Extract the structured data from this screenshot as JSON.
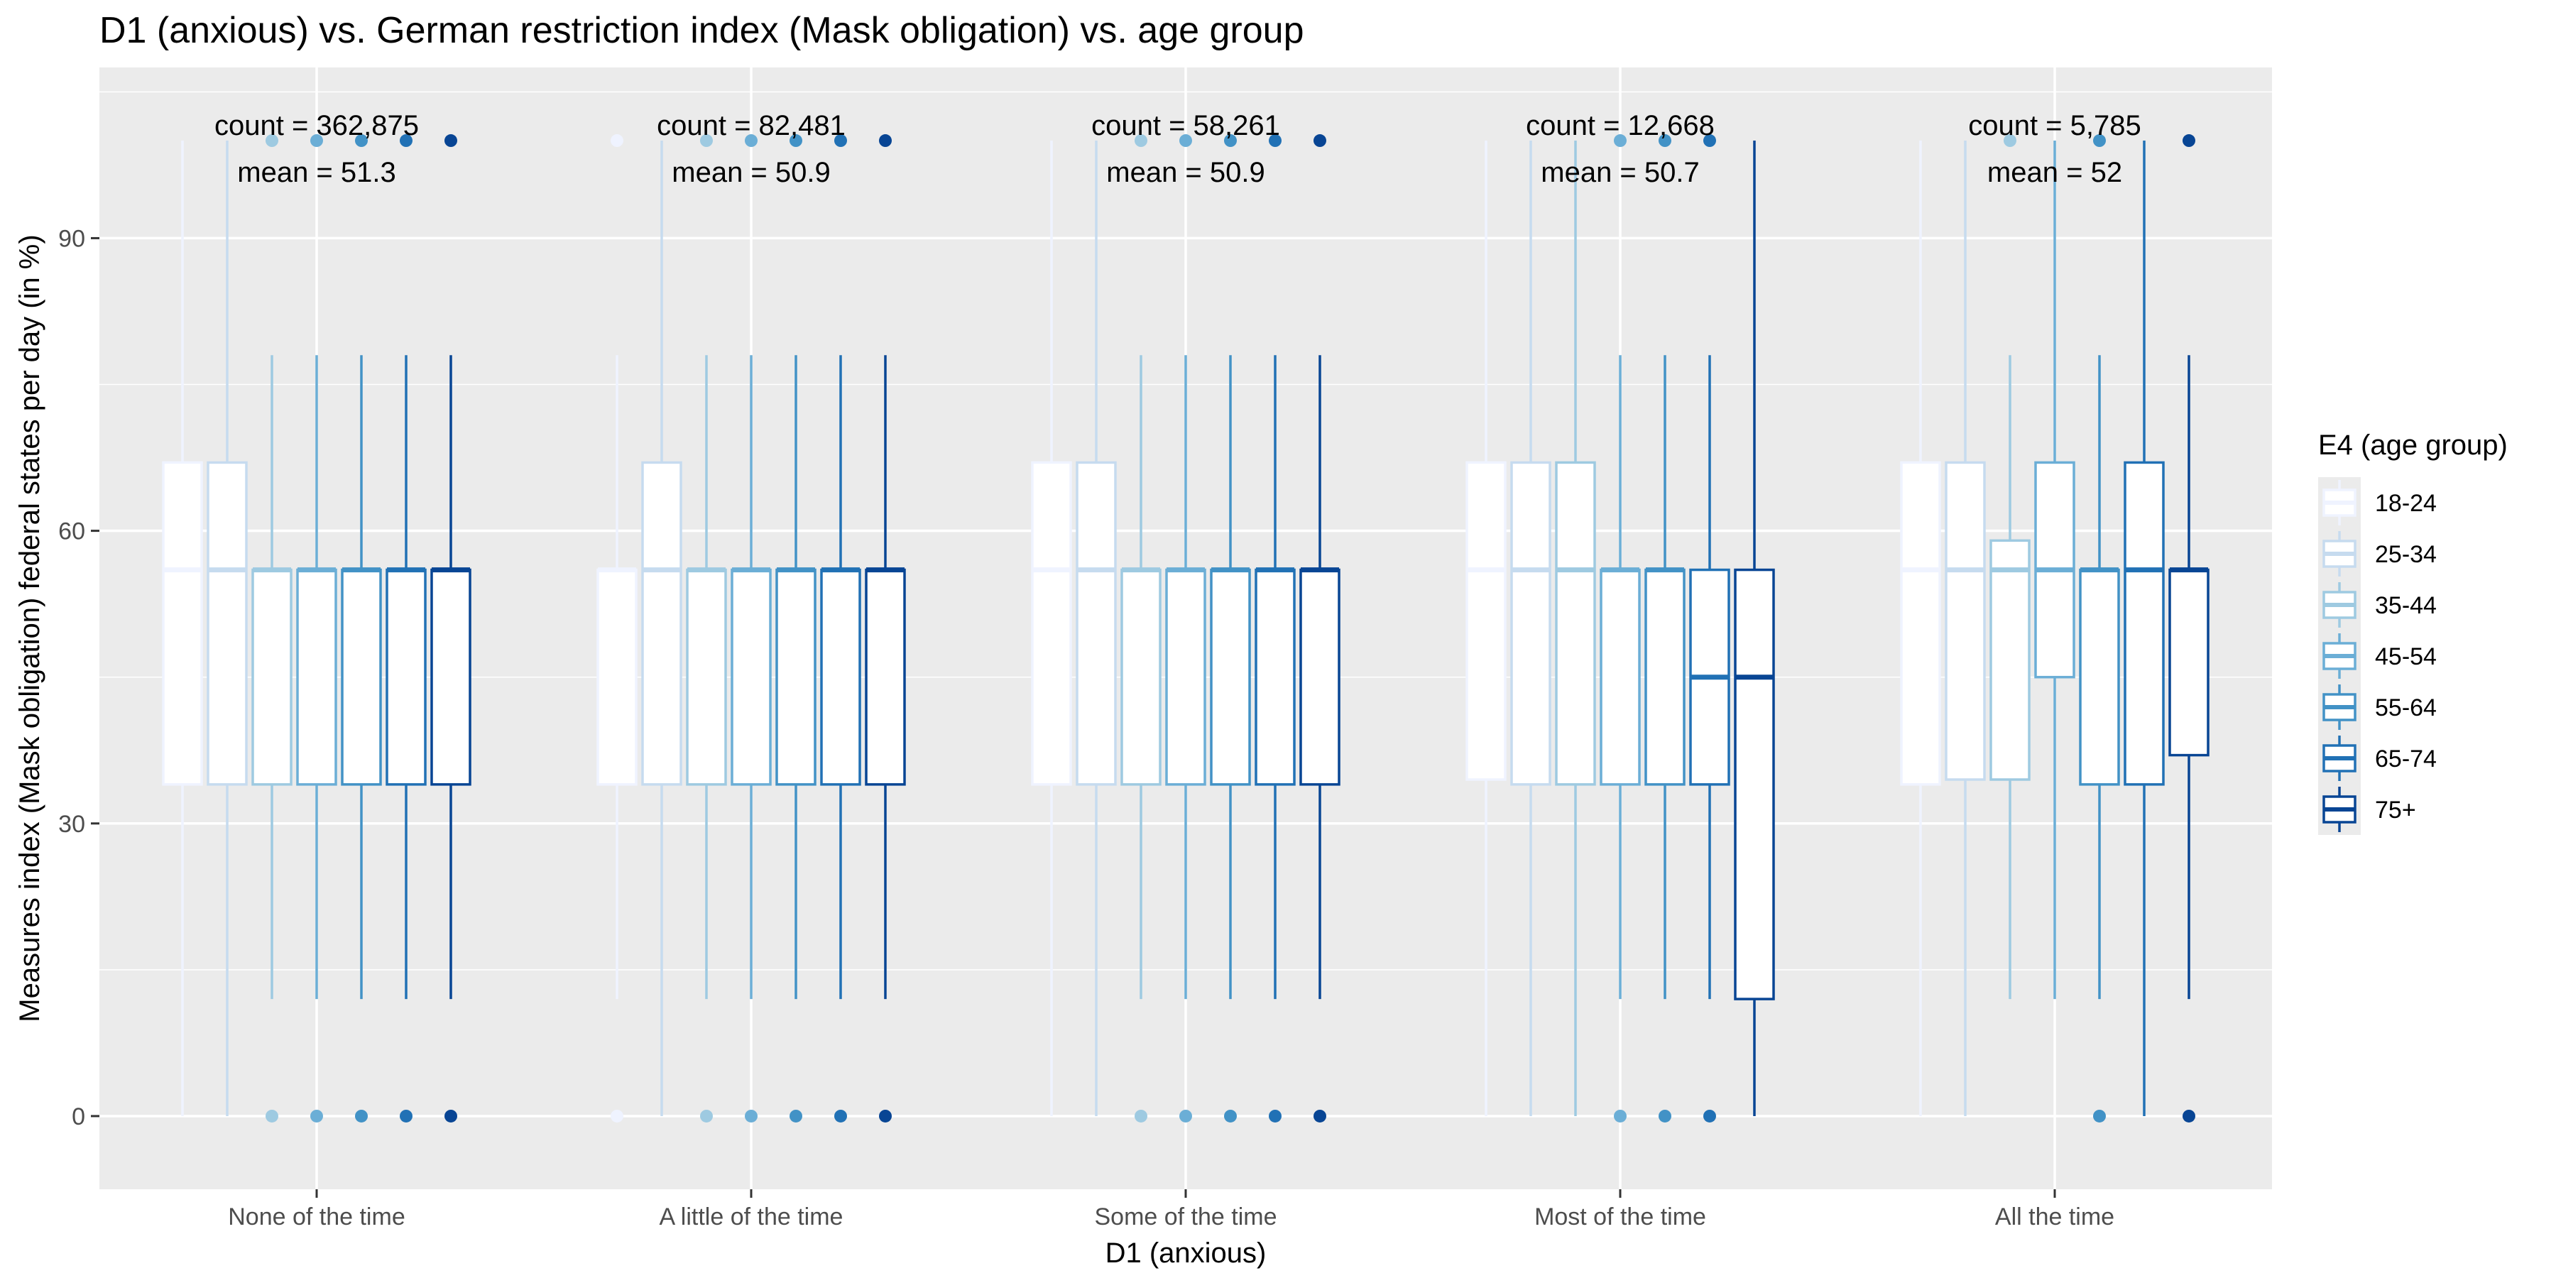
{
  "chart_data": {
    "type": "box",
    "title": "D1 (anxious) vs. German restriction index (Mask obligation) vs. age group",
    "xlabel": "D1 (anxious)",
    "ylabel": "Measures index (Mask obligation) federal states per day (in %)",
    "ylim": [
      -7.5,
      107.5
    ],
    "yticks": [
      0,
      30,
      60,
      90
    ],
    "grid": true,
    "legend": {
      "title": "E4 (age group)",
      "position": "right",
      "entries": [
        "18-24",
        "25-34",
        "35-44",
        "45-54",
        "55-64",
        "65-74",
        "75+"
      ],
      "colors": [
        "#EFF3FF",
        "#C6DBEF",
        "#9ECAE1",
        "#6BAED6",
        "#4292C6",
        "#2171B5",
        "#084594"
      ]
    },
    "categories": [
      "None of the time",
      "A little of the time",
      "Some of the time",
      "Most of the time",
      "All the time"
    ],
    "annotations": [
      {
        "category": "None of the time",
        "count_text": "count = 362,875",
        "mean_text": "mean = 51.3"
      },
      {
        "category": "A little of the time",
        "count_text": "count = 82,481",
        "mean_text": "mean = 50.9"
      },
      {
        "category": "Some of the time",
        "count_text": "count = 58,261",
        "mean_text": "mean = 50.9"
      },
      {
        "category": "Most of the time",
        "count_text": "count = 12,668",
        "mean_text": "mean = 50.7"
      },
      {
        "category": "All the time",
        "count_text": "count = 5,785",
        "mean_text": "mean = 52"
      }
    ],
    "series": [
      {
        "name": "18-24",
        "boxes": [
          {
            "min": 0,
            "q1": 34,
            "median": 56,
            "q3": 67,
            "max": 100,
            "outliers": []
          },
          {
            "min": 12,
            "q1": 34,
            "median": 56,
            "q3": 56,
            "max": 78,
            "outliers": [
              0,
              100
            ]
          },
          {
            "min": 0,
            "q1": 34,
            "median": 56,
            "q3": 67,
            "max": 100,
            "outliers": []
          },
          {
            "min": 0,
            "q1": 34.5,
            "median": 56,
            "q3": 67,
            "max": 100,
            "outliers": []
          },
          {
            "min": 0,
            "q1": 34,
            "median": 56,
            "q3": 67,
            "max": 100,
            "outliers": []
          }
        ]
      },
      {
        "name": "25-34",
        "boxes": [
          {
            "min": 0,
            "q1": 34,
            "median": 56,
            "q3": 67,
            "max": 100,
            "outliers": []
          },
          {
            "min": 0,
            "q1": 34,
            "median": 56,
            "q3": 67,
            "max": 100,
            "outliers": []
          },
          {
            "min": 0,
            "q1": 34,
            "median": 56,
            "q3": 67,
            "max": 100,
            "outliers": []
          },
          {
            "min": 0,
            "q1": 34,
            "median": 56,
            "q3": 67,
            "max": 100,
            "outliers": []
          },
          {
            "min": 0,
            "q1": 34.5,
            "median": 56,
            "q3": 67,
            "max": 100,
            "outliers": []
          }
        ]
      },
      {
        "name": "35-44",
        "boxes": [
          {
            "min": 12,
            "q1": 34,
            "median": 56,
            "q3": 56,
            "max": 78,
            "outliers": [
              0,
              100
            ]
          },
          {
            "min": 12,
            "q1": 34,
            "median": 56,
            "q3": 56,
            "max": 78,
            "outliers": [
              0,
              100
            ]
          },
          {
            "min": 12,
            "q1": 34,
            "median": 56,
            "q3": 56,
            "max": 78,
            "outliers": [
              0,
              100
            ]
          },
          {
            "min": 0,
            "q1": 34,
            "median": 56,
            "q3": 67,
            "max": 100,
            "outliers": []
          },
          {
            "min": 12,
            "q1": 34.5,
            "median": 56,
            "q3": 59,
            "max": 78,
            "outliers": [
              100
            ]
          }
        ]
      },
      {
        "name": "45-54",
        "boxes": [
          {
            "min": 12,
            "q1": 34,
            "median": 56,
            "q3": 56,
            "max": 78,
            "outliers": [
              0,
              100
            ]
          },
          {
            "min": 12,
            "q1": 34,
            "median": 56,
            "q3": 56,
            "max": 78,
            "outliers": [
              0,
              100
            ]
          },
          {
            "min": 12,
            "q1": 34,
            "median": 56,
            "q3": 56,
            "max": 78,
            "outliers": [
              0,
              100
            ]
          },
          {
            "min": 12,
            "q1": 34,
            "median": 56,
            "q3": 56,
            "max": 78,
            "outliers": [
              0,
              100
            ]
          },
          {
            "min": 12,
            "q1": 45,
            "median": 56,
            "q3": 67,
            "max": 100,
            "outliers": []
          }
        ]
      },
      {
        "name": "55-64",
        "boxes": [
          {
            "min": 12,
            "q1": 34,
            "median": 56,
            "q3": 56,
            "max": 78,
            "outliers": [
              0,
              100
            ]
          },
          {
            "min": 12,
            "q1": 34,
            "median": 56,
            "q3": 56,
            "max": 78,
            "outliers": [
              0,
              100
            ]
          },
          {
            "min": 12,
            "q1": 34,
            "median": 56,
            "q3": 56,
            "max": 78,
            "outliers": [
              0,
              100
            ]
          },
          {
            "min": 12,
            "q1": 34,
            "median": 56,
            "q3": 56,
            "max": 78,
            "outliers": [
              0,
              100
            ]
          },
          {
            "min": 12,
            "q1": 34,
            "median": 56,
            "q3": 56,
            "max": 78,
            "outliers": [
              0,
              100
            ]
          }
        ]
      },
      {
        "name": "65-74",
        "boxes": [
          {
            "min": 12,
            "q1": 34,
            "median": 56,
            "q3": 56,
            "max": 78,
            "outliers": [
              0,
              100
            ]
          },
          {
            "min": 12,
            "q1": 34,
            "median": 56,
            "q3": 56,
            "max": 78,
            "outliers": [
              0,
              100
            ]
          },
          {
            "min": 12,
            "q1": 34,
            "median": 56,
            "q3": 56,
            "max": 78,
            "outliers": [
              0,
              100
            ]
          },
          {
            "min": 12,
            "q1": 34,
            "median": 45,
            "q3": 56,
            "max": 78,
            "outliers": [
              0,
              100
            ]
          },
          {
            "min": 0,
            "q1": 34,
            "median": 56,
            "q3": 67,
            "max": 100,
            "outliers": []
          }
        ]
      },
      {
        "name": "75+",
        "boxes": [
          {
            "min": 12,
            "q1": 34,
            "median": 56,
            "q3": 56,
            "max": 78,
            "outliers": [
              0,
              100
            ]
          },
          {
            "min": 12,
            "q1": 34,
            "median": 56,
            "q3": 56,
            "max": 78,
            "outliers": [
              0,
              100
            ]
          },
          {
            "min": 12,
            "q1": 34,
            "median": 56,
            "q3": 56,
            "max": 78,
            "outliers": [
              0,
              100
            ]
          },
          {
            "min": 0,
            "q1": 12,
            "median": 45,
            "q3": 56,
            "max": 100,
            "outliers": []
          },
          {
            "min": 12,
            "q1": 37,
            "median": 56,
            "q3": 56,
            "max": 78,
            "outliers": [
              0,
              100
            ]
          }
        ]
      }
    ]
  }
}
